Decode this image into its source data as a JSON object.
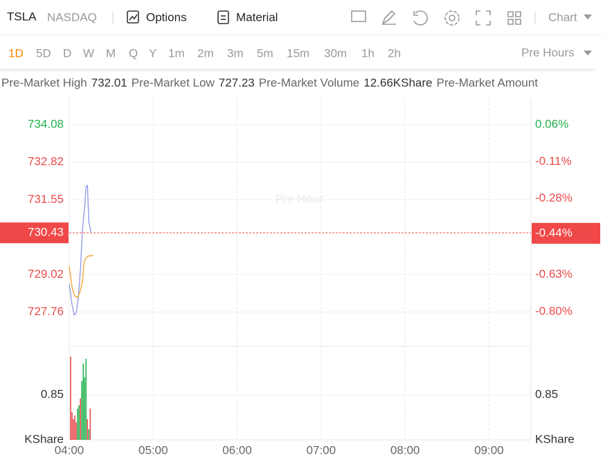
{
  "header": {
    "symbol": "TSLA",
    "exchange": "NASDAQ",
    "tabs": [
      "Options",
      "Material"
    ],
    "view": "Chart"
  },
  "periods": {
    "items": [
      "1D",
      "5D",
      "D",
      "W",
      "M",
      "Q",
      "Y",
      "1m",
      "2m",
      "3m",
      "5m",
      "15m",
      "30m",
      "1h",
      "2h"
    ],
    "active": 0,
    "session": "Pre Hours"
  },
  "stats": [
    {
      "label": "Pre-Market High",
      "value": "732.01"
    },
    {
      "label": "Pre-Market Low",
      "value": "727.23"
    },
    {
      "label": "Pre-Market Volume",
      "value": "12.66KShare"
    },
    {
      "label": "Pre-Market Amount"
    }
  ],
  "chart_data": {
    "type": "line",
    "watermark": "Pre Hour",
    "xlim": [
      0,
      330
    ],
    "xticks": [
      {
        "value": 0,
        "label": "04:00"
      },
      {
        "value": 60,
        "label": "05:00"
      },
      {
        "value": 120,
        "label": "06:00"
      },
      {
        "value": 180,
        "label": "07:00"
      },
      {
        "value": 240,
        "label": "08:00"
      },
      {
        "value": 300,
        "label": "09:00"
      }
    ],
    "ylim": [
      726.6,
      734.97
    ],
    "yticks": [
      734.08,
      732.82,
      731.55,
      730.43,
      729.02,
      727.76
    ],
    "ytick_colors": [
      "#22b14c",
      "#e84a4a",
      "#e84a4a",
      "#ffffff",
      "#e84a4a",
      "#e84a4a"
    ],
    "y2lim": [
      -0.96,
      0.181
    ],
    "y2ticks": [
      {
        "value": 0.06,
        "label": "0.06%"
      },
      {
        "value": -0.11,
        "label": "-0.11%"
      },
      {
        "value": -0.28,
        "label": "-0.28%"
      },
      {
        "value": -0.44,
        "label": "-0.44%"
      },
      {
        "value": -0.63,
        "label": "-0.63%"
      },
      {
        "value": -0.8,
        "label": "-0.80%"
      }
    ],
    "current_index": 3,
    "current_color": "#f04848",
    "series": [
      {
        "color": "#8d95e6",
        "x": [
          0,
          2,
          3.5,
          5,
          6.5,
          8,
          9.5,
          11,
          12,
          13,
          14,
          15.5
        ],
        "values": [
          728.71,
          728.01,
          727.66,
          727.73,
          728.25,
          729.18,
          730.58,
          731.28,
          731.98,
          732.03,
          730.81,
          730.46
        ]
      },
      {
        "color": "#f0a030",
        "x": [
          0,
          2,
          4,
          6,
          8,
          9.5,
          10.5,
          12,
          14,
          17
        ],
        "values": [
          729.3,
          728.6,
          728.29,
          728.25,
          728.48,
          728.83,
          729.41,
          729.6,
          729.65,
          729.67
        ]
      }
    ],
    "volume": {
      "x": [
        1,
        2,
        3,
        4,
        5,
        6,
        7,
        8,
        9,
        10,
        11,
        12,
        13,
        14,
        15
      ],
      "values": [
        1.57,
        0.52,
        0.39,
        0.46,
        0.33,
        0.59,
        0.65,
        0.78,
        1.11,
        1.44,
        1.18,
        1.53,
        0.39,
        0.2,
        0.59
      ],
      "colors": [
        "#e84a4a",
        "#e84a4a",
        "#e84a4a",
        "#e84a4a",
        "#e84a4a",
        "#22b14c",
        "#22b14c",
        "#e84a4a",
        "#22b14c",
        "#22b14c",
        "#22b14c",
        "#22b14c",
        "#e84a4a",
        "#22b14c",
        "#e84a4a"
      ],
      "ylim": [
        0,
        1.765
      ],
      "yticks": [
        0.85
      ],
      "unit": "KShare"
    }
  }
}
